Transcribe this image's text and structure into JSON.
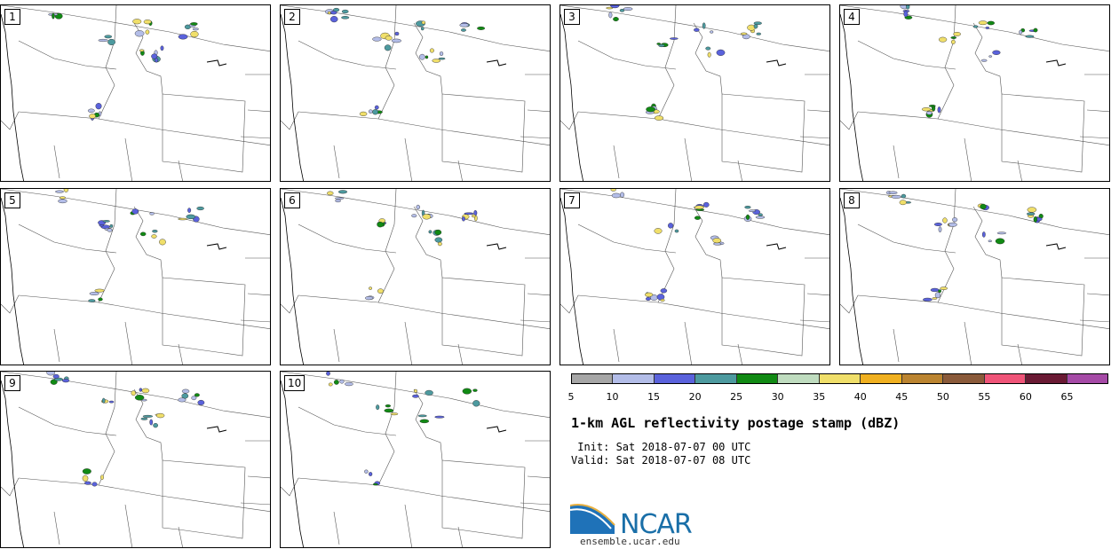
{
  "panels": [
    "1",
    "2",
    "3",
    "4",
    "5",
    "6",
    "7",
    "8",
    "9",
    "10"
  ],
  "legend": {
    "ticks": [
      "5",
      "10",
      "15",
      "20",
      "25",
      "30",
      "35",
      "40",
      "45",
      "50",
      "55",
      "60",
      "65"
    ],
    "colors": [
      "#a6a6a6",
      "#b3bde8",
      "#5a62dc",
      "#4d9a9f",
      "#118a14",
      "#bfdcbf",
      "#f0df6a",
      "#f0b020",
      "#bb8430",
      "#8a5a3a",
      "#ef5478",
      "#6a1a34",
      "#a54aa6"
    ]
  },
  "title": "1-km AGL reflectivity postage stamp (dBZ)",
  "init": " Init: Sat 2018-07-07 00 UTC",
  "valid": "Valid: Sat 2018-07-07 08 UTC",
  "logo": {
    "name": "NCAR",
    "url": "ensemble.ucar.edu"
  }
}
